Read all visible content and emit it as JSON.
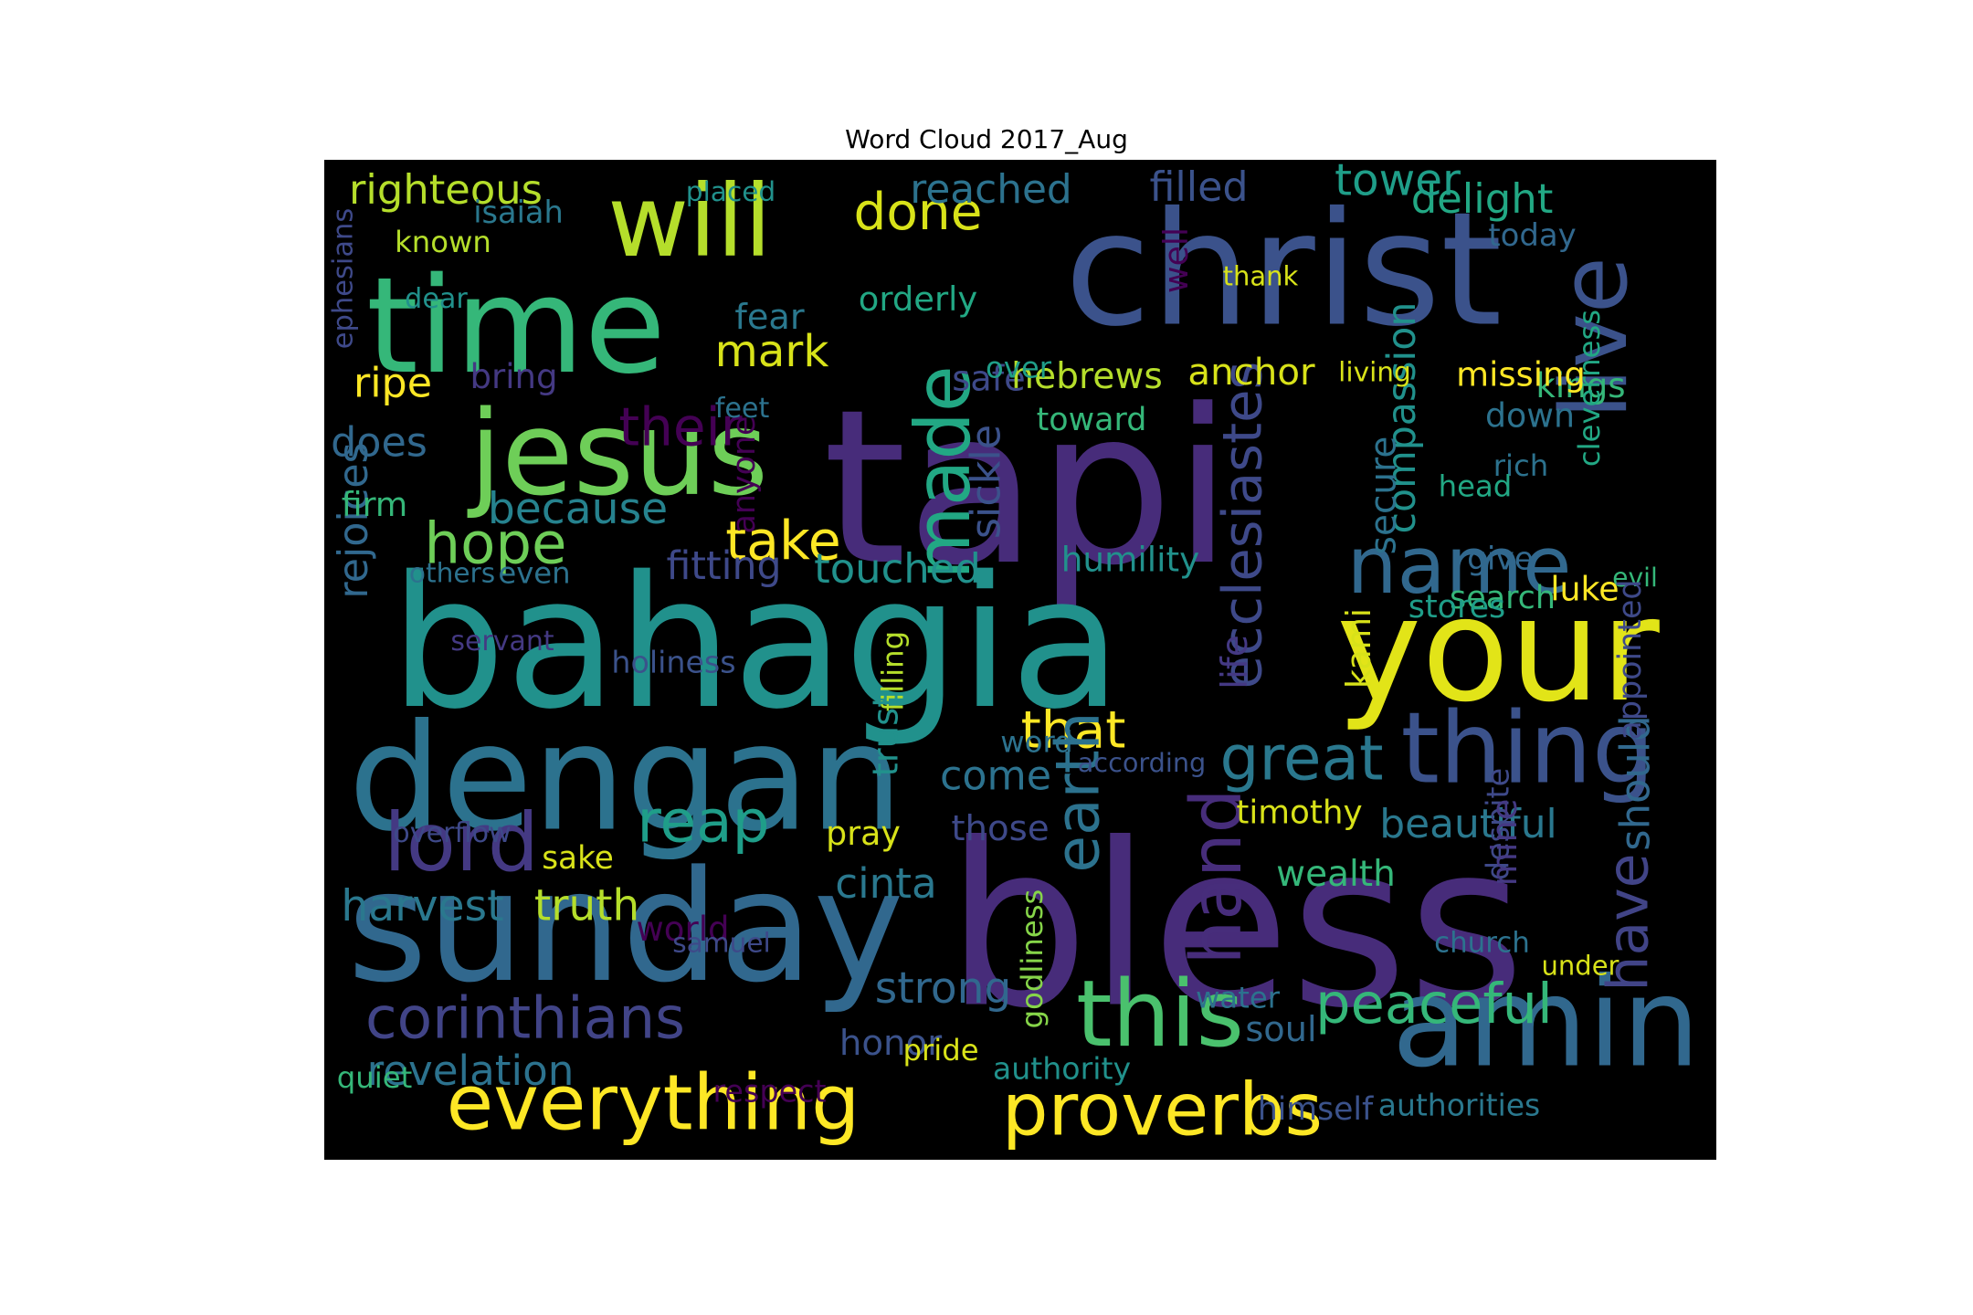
{
  "chart_data": {
    "type": "wordcloud",
    "title": "Word Cloud 2017_Aug",
    "background": "#000000",
    "colormap": "viridis",
    "words": [
      {
        "text": "tapi",
        "color": "#472c7a"
      },
      {
        "text": "bless",
        "color": "#472c7a"
      },
      {
        "text": "bahagia",
        "color": "#21918c"
      },
      {
        "text": "christ",
        "color": "#3b528b"
      },
      {
        "text": "time",
        "color": "#35b779"
      },
      {
        "text": "your",
        "color": "#e2e418"
      },
      {
        "text": "dengan",
        "color": "#2c728e"
      },
      {
        "text": "sunday",
        "color": "#31688e"
      },
      {
        "text": "jesus",
        "color": "#6ece58"
      },
      {
        "text": "amin",
        "color": "#31688e"
      },
      {
        "text": "everything",
        "color": "#fde725"
      },
      {
        "text": "will",
        "color": "#b5de2b"
      },
      {
        "text": "proverbs",
        "color": "#fde725"
      },
      {
        "text": "this",
        "color": "#4ac16d"
      },
      {
        "text": "thing",
        "color": "#3b528b"
      },
      {
        "text": "name",
        "color": "#31688e"
      },
      {
        "text": "lord",
        "color": "#443983"
      },
      {
        "text": "live",
        "color": "#3b528b"
      },
      {
        "text": "ecclesiastes",
        "color": "#3e4989"
      },
      {
        "text": "corinthians",
        "color": "#414487"
      },
      {
        "text": "reap",
        "color": "#1f9e89"
      },
      {
        "text": "peaceful",
        "color": "#35b779"
      },
      {
        "text": "great",
        "color": "#2a788e"
      },
      {
        "text": "that",
        "color": "#fde725"
      },
      {
        "text": "hope",
        "color": "#6ece58"
      },
      {
        "text": "done",
        "color": "#d8e219"
      },
      {
        "text": "righteous",
        "color": "#b5de2b"
      },
      {
        "text": "hand",
        "color": "#472d7b"
      },
      {
        "text": "take",
        "color": "#fde725"
      },
      {
        "text": "delight",
        "color": "#22a884"
      },
      {
        "text": "filled",
        "color": "#3b528b"
      },
      {
        "text": "reached",
        "color": "#2c728e"
      },
      {
        "text": "tower",
        "color": "#1f9e89"
      },
      {
        "text": "made",
        "color": "#22a884"
      },
      {
        "text": "earth",
        "color": "#2c728e"
      },
      {
        "text": "have",
        "color": "#414487"
      },
      {
        "text": "should",
        "color": "#31688e"
      },
      {
        "text": "compassion",
        "color": "#21918c"
      },
      {
        "text": "beautiful",
        "color": "#2a788e"
      },
      {
        "text": "their",
        "color": "#440154"
      },
      {
        "text": "mark",
        "color": "#d8e219"
      },
      {
        "text": "revelation",
        "color": "#2c728e"
      },
      {
        "text": "truth",
        "color": "#b5de2b"
      },
      {
        "text": "harvest",
        "color": "#2a788e"
      },
      {
        "text": "touched",
        "color": "#21918c"
      },
      {
        "text": "fitting",
        "color": "#3e4989"
      },
      {
        "text": "because",
        "color": "#26828e"
      },
      {
        "text": "rejoices",
        "color": "#31688e"
      },
      {
        "text": "cinta",
        "color": "#2a788e"
      },
      {
        "text": "come",
        "color": "#2c728e"
      },
      {
        "text": "sickle",
        "color": "#3b528b"
      },
      {
        "text": "strong",
        "color": "#31688e"
      },
      {
        "text": "wealth",
        "color": "#35b779"
      },
      {
        "text": "safe",
        "color": "#3e4989"
      },
      {
        "text": "hebrews",
        "color": "#b5de2b"
      },
      {
        "text": "anchor",
        "color": "#d8e219"
      },
      {
        "text": "humility",
        "color": "#21918c"
      },
      {
        "text": "kings",
        "color": "#35b779"
      },
      {
        "text": "evil",
        "color": "#35b779"
      },
      {
        "text": "orderly",
        "color": "#22a884"
      },
      {
        "text": "ripe",
        "color": "#fde725"
      },
      {
        "text": "bring",
        "color": "#443983"
      },
      {
        "text": "does",
        "color": "#31688e"
      },
      {
        "text": "fear",
        "color": "#2a788e"
      },
      {
        "text": "honor",
        "color": "#3b528b"
      },
      {
        "text": "soul",
        "color": "#31688e"
      },
      {
        "text": "those",
        "color": "#3e4989"
      },
      {
        "text": "timothy",
        "color": "#d8e219"
      },
      {
        "text": "secure",
        "color": "#2c728e"
      },
      {
        "text": "godliness",
        "color": "#86d549"
      },
      {
        "text": "firm",
        "color": "#35b779"
      },
      {
        "text": "pride",
        "color": "#d8e219"
      },
      {
        "text": "pray",
        "color": "#d8e219"
      },
      {
        "text": "sake",
        "color": "#d8e219"
      },
      {
        "text": "holiness",
        "color": "#3b528b"
      },
      {
        "text": "authorities",
        "color": "#2a788e"
      },
      {
        "text": "himself",
        "color": "#3b528b"
      },
      {
        "text": "authority",
        "color": "#21918c"
      },
      {
        "text": "quiet",
        "color": "#35b779"
      },
      {
        "text": "respect",
        "color": "#440154"
      },
      {
        "text": "missing",
        "color": "#fde725"
      },
      {
        "text": "living",
        "color": "#d8e219"
      },
      {
        "text": "down",
        "color": "#2c728e"
      },
      {
        "text": "rich",
        "color": "#2c728e"
      },
      {
        "text": "toward",
        "color": "#35b779"
      },
      {
        "text": "search",
        "color": "#35b779"
      },
      {
        "text": "luke",
        "color": "#fde725"
      },
      {
        "text": "stores",
        "color": "#1f9e89"
      },
      {
        "text": "isaiah",
        "color": "#2a788e"
      },
      {
        "text": "known",
        "color": "#b5de2b"
      },
      {
        "text": "placed",
        "color": "#21918c"
      },
      {
        "text": "today",
        "color": "#31688e"
      },
      {
        "text": "thank",
        "color": "#d8e219"
      },
      {
        "text": "dear",
        "color": "#21918c"
      },
      {
        "text": "feet",
        "color": "#2c728e"
      },
      {
        "text": "over",
        "color": "#1f9e89"
      },
      {
        "text": "head",
        "color": "#22a884"
      },
      {
        "text": "give",
        "color": "#31688e"
      },
      {
        "text": "others",
        "color": "#2c728e"
      },
      {
        "text": "even",
        "color": "#2c728e"
      },
      {
        "text": "word",
        "color": "#2c728e"
      },
      {
        "text": "according",
        "color": "#3b528b"
      },
      {
        "text": "overflow",
        "color": "#3e4989"
      },
      {
        "text": "world",
        "color": "#440154"
      },
      {
        "text": "samuel",
        "color": "#3e4989"
      },
      {
        "text": "church",
        "color": "#2c728e"
      },
      {
        "text": "under",
        "color": "#d8e219"
      },
      {
        "text": "water",
        "color": "#2c728e"
      },
      {
        "text": "servant",
        "color": "#443983"
      },
      {
        "text": "ephesians",
        "color": "#3e4989"
      },
      {
        "text": "well",
        "color": "#440154"
      },
      {
        "text": "anyone",
        "color": "#440154"
      },
      {
        "text": "filling",
        "color": "#b5de2b"
      },
      {
        "text": "trust",
        "color": "#21918c"
      },
      {
        "text": "life",
        "color": "#443983"
      },
      {
        "text": "kami",
        "color": "#d8e219"
      },
      {
        "text": "cleverness",
        "color": "#22a884"
      },
      {
        "text": "appointed",
        "color": "#3e4989"
      },
      {
        "text": "despite",
        "color": "#3e4989"
      },
      {
        "text": "mine",
        "color": "#443983"
      }
    ]
  }
}
